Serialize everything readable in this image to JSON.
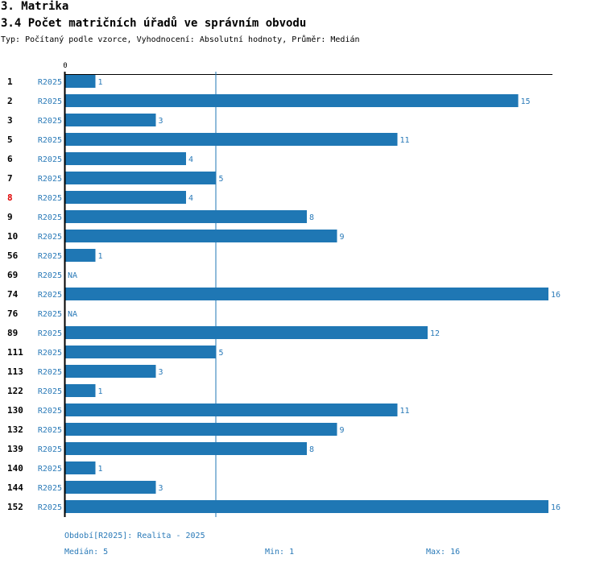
{
  "header": {
    "section": "3. Matrika",
    "title": "3.4 Počet matričních úřadů ve správním obvodu",
    "subtitle": "Typ: Počítaný podle vzorce, Vyhodnocení: Absolutní hodnoty, Průměr: Medián"
  },
  "chart_data": {
    "type": "bar",
    "orientation": "horizontal",
    "axis_zero_label": "0",
    "xlim": [
      0,
      16
    ],
    "reference_line": {
      "label": "Medián",
      "value": 5
    },
    "series": [
      {
        "name": "R2025",
        "color": "#1f77b4"
      }
    ],
    "rows": [
      {
        "label": "1",
        "series": "R2025",
        "value": 1,
        "display": "1",
        "highlight": false
      },
      {
        "label": "2",
        "series": "R2025",
        "value": 15,
        "display": "15",
        "highlight": false
      },
      {
        "label": "3",
        "series": "R2025",
        "value": 3,
        "display": "3",
        "highlight": false
      },
      {
        "label": "5",
        "series": "R2025",
        "value": 11,
        "display": "11",
        "highlight": false
      },
      {
        "label": "6",
        "series": "R2025",
        "value": 4,
        "display": "4",
        "highlight": false
      },
      {
        "label": "7",
        "series": "R2025",
        "value": 5,
        "display": "5",
        "highlight": false
      },
      {
        "label": "8",
        "series": "R2025",
        "value": 4,
        "display": "4",
        "highlight": true
      },
      {
        "label": "9",
        "series": "R2025",
        "value": 8,
        "display": "8",
        "highlight": false
      },
      {
        "label": "10",
        "series": "R2025",
        "value": 9,
        "display": "9",
        "highlight": false
      },
      {
        "label": "56",
        "series": "R2025",
        "value": 1,
        "display": "1",
        "highlight": false
      },
      {
        "label": "69",
        "series": "R2025",
        "value": null,
        "display": "NA",
        "highlight": false
      },
      {
        "label": "74",
        "series": "R2025",
        "value": 16,
        "display": "16",
        "highlight": false
      },
      {
        "label": "76",
        "series": "R2025",
        "value": null,
        "display": "NA",
        "highlight": false
      },
      {
        "label": "89",
        "series": "R2025",
        "value": 12,
        "display": "12",
        "highlight": false
      },
      {
        "label": "111",
        "series": "R2025",
        "value": 5,
        "display": "5",
        "highlight": false
      },
      {
        "label": "113",
        "series": "R2025",
        "value": 3,
        "display": "3",
        "highlight": false
      },
      {
        "label": "122",
        "series": "R2025",
        "value": 1,
        "display": "1",
        "highlight": false
      },
      {
        "label": "130",
        "series": "R2025",
        "value": 11,
        "display": "11",
        "highlight": false
      },
      {
        "label": "132",
        "series": "R2025",
        "value": 9,
        "display": "9",
        "highlight": false
      },
      {
        "label": "139",
        "series": "R2025",
        "value": 8,
        "display": "8",
        "highlight": false
      },
      {
        "label": "140",
        "series": "R2025",
        "value": 1,
        "display": "1",
        "highlight": false
      },
      {
        "label": "144",
        "series": "R2025",
        "value": 3,
        "display": "3",
        "highlight": false
      },
      {
        "label": "152",
        "series": "R2025",
        "value": 16,
        "display": "16",
        "highlight": false
      }
    ]
  },
  "footer": {
    "period": "Období[R2025]: Realita - 2025",
    "median": "Medián: 5",
    "min": "Min: 1",
    "max": "Max: 16"
  },
  "colors": {
    "bar": "#1f77b4",
    "accent_text": "#2a7ab8",
    "highlight_label": "#e00000",
    "axis": "#000000"
  }
}
